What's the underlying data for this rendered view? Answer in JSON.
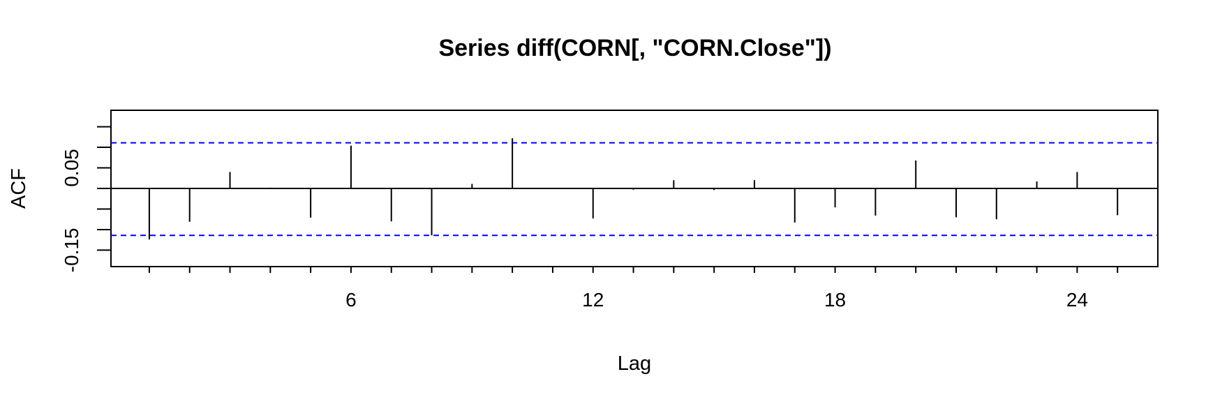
{
  "chart_data": {
    "type": "bar",
    "title": "Series  diff(CORN[, \"CORN.Close\"])",
    "xlabel": "Lag",
    "ylabel": "ACF",
    "x_ticks": [
      "6",
      "12",
      "18",
      "24"
    ],
    "y_ticks": [
      "-0.15",
      "0.05"
    ],
    "xlim": [
      0.05,
      26.0
    ],
    "ylim": [
      -0.19,
      0.19
    ],
    "lags": [
      1,
      2,
      3,
      4,
      5,
      6,
      7,
      8,
      9,
      10,
      11,
      12,
      13,
      14,
      15,
      16,
      17,
      18,
      19,
      20,
      21,
      22,
      23,
      24,
      25
    ],
    "values": [
      -0.124,
      -0.081,
      0.04,
      0.002,
      -0.071,
      0.104,
      -0.08,
      -0.114,
      0.011,
      0.122,
      0,
      -0.073,
      -0.003,
      0.02,
      -0.004,
      0.02,
      -0.083,
      -0.046,
      -0.066,
      0.068,
      -0.07,
      -0.075,
      0.017,
      0.04,
      -0.065
    ],
    "ci_upper": 0.111,
    "ci_lower": -0.114,
    "ci_color": "#0000ff",
    "grid": false,
    "legend": "none"
  }
}
